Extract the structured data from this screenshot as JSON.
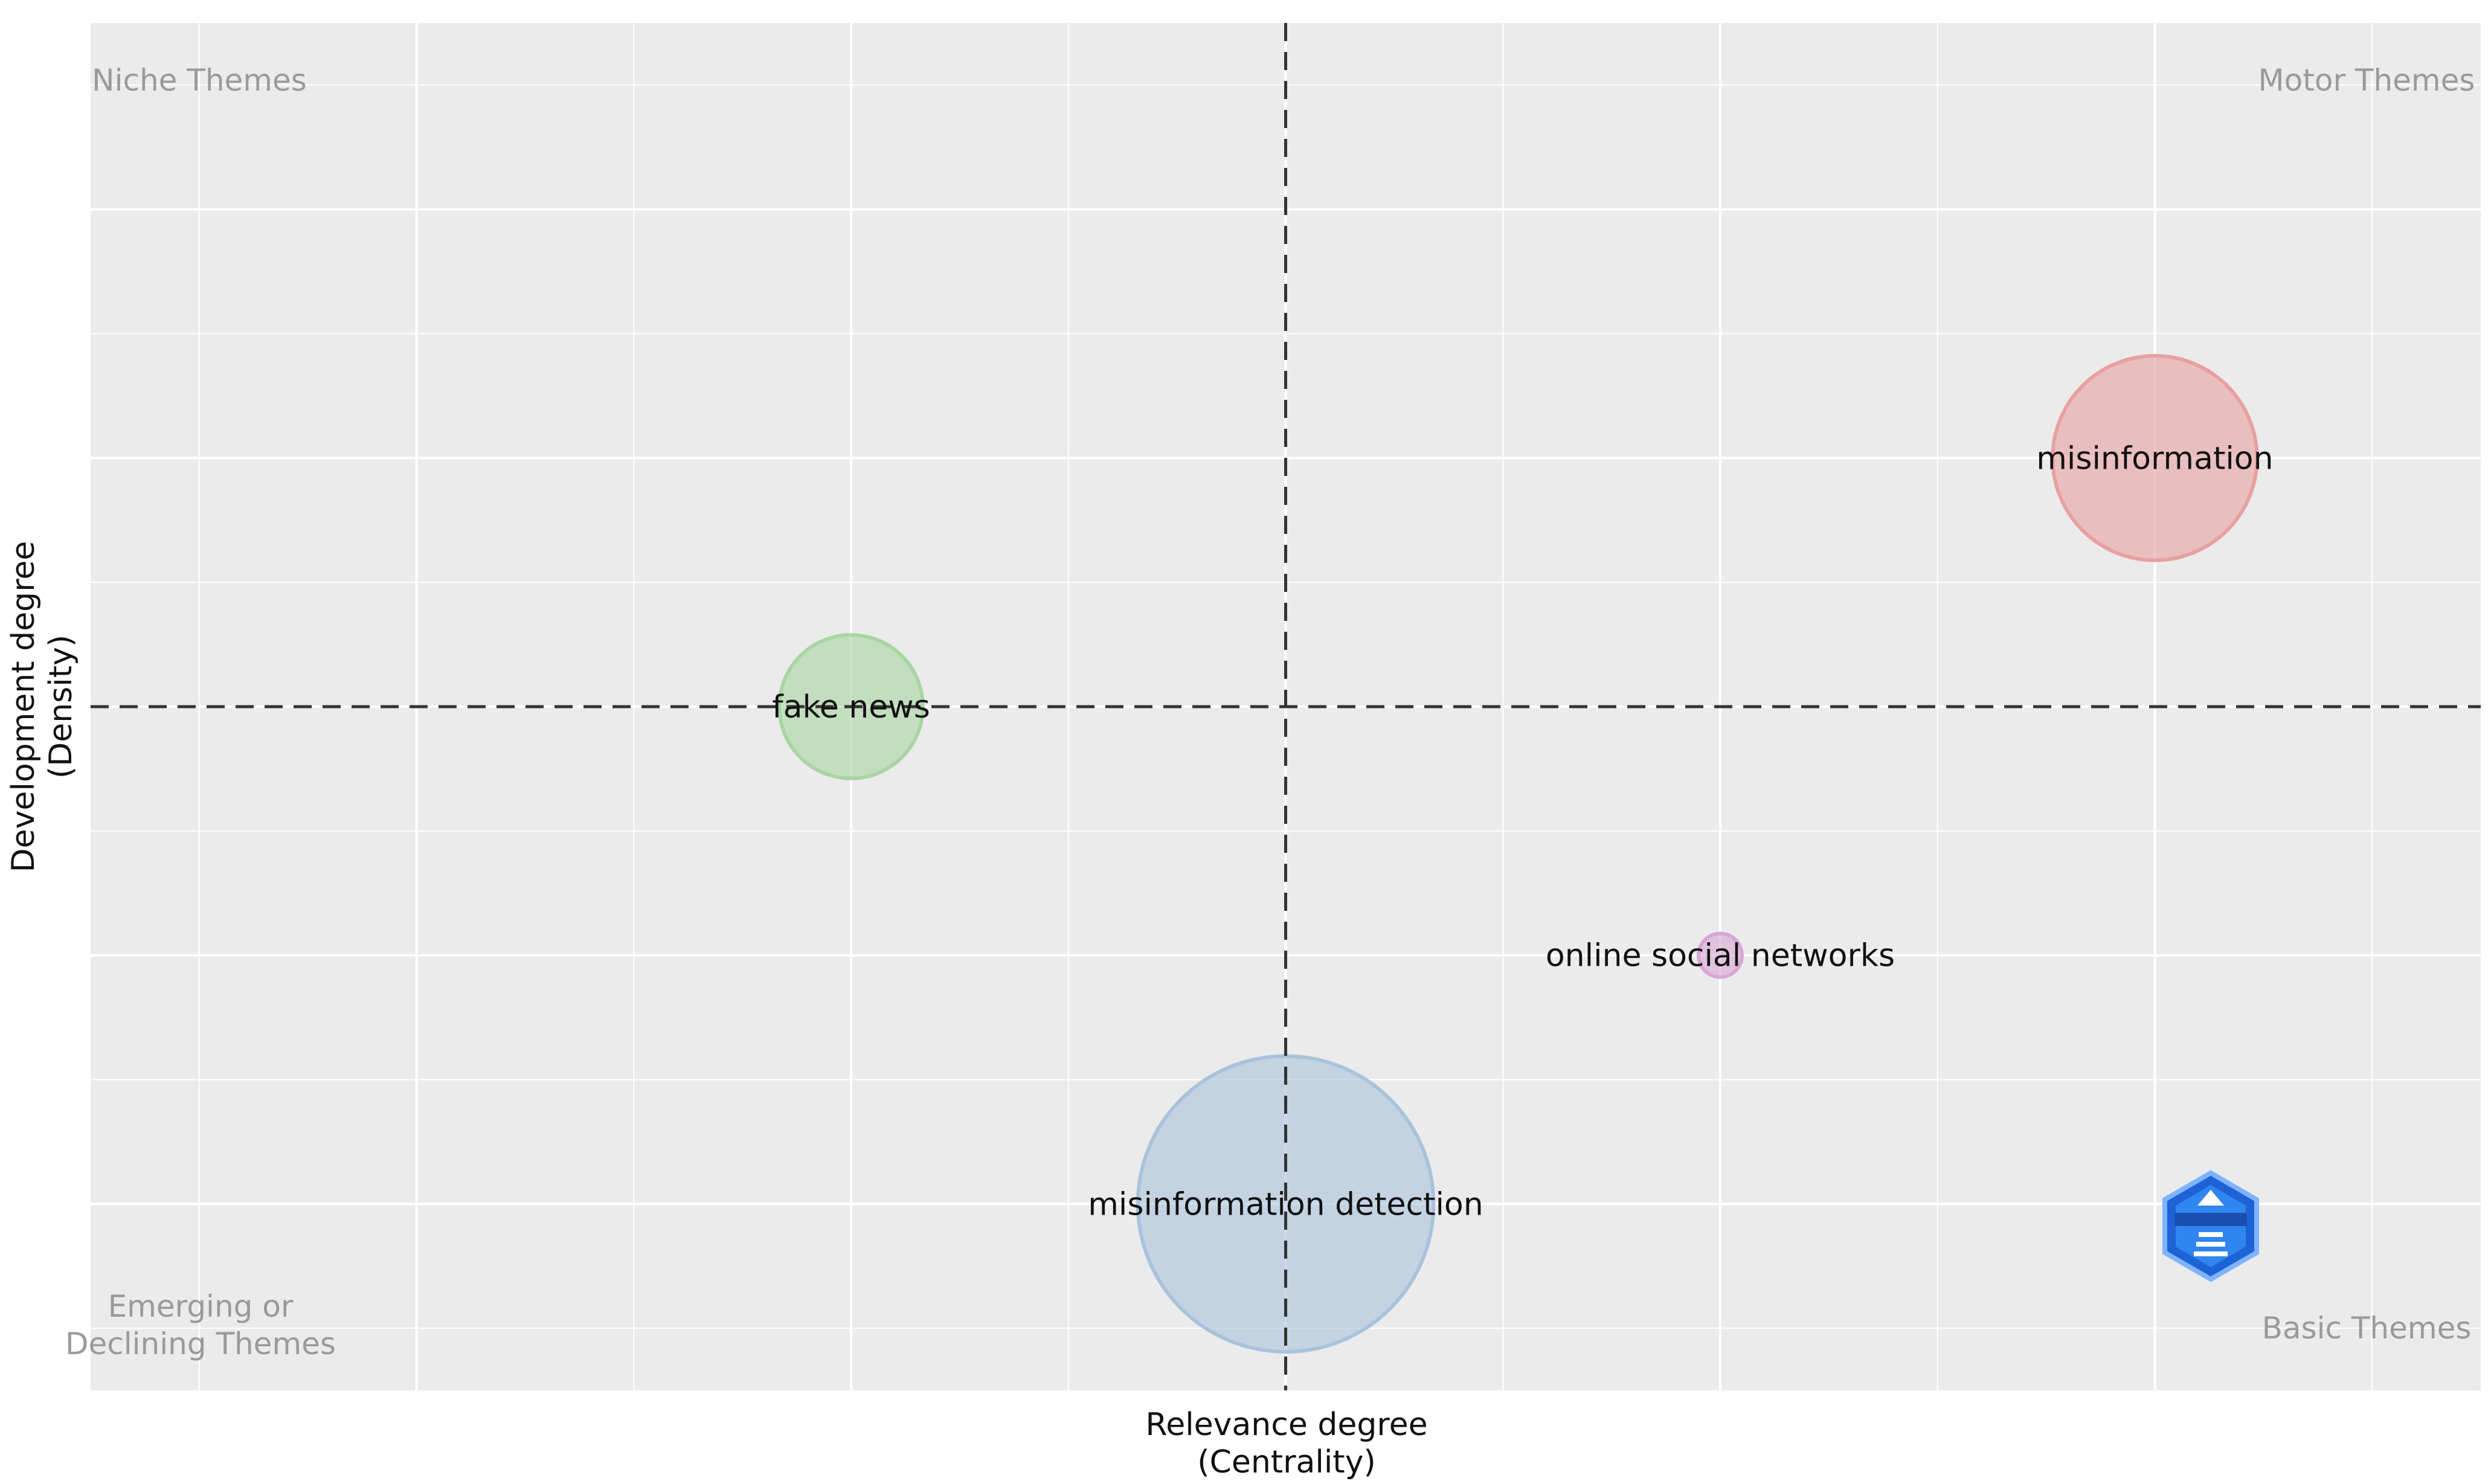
{
  "chart_data": {
    "type": "scatter",
    "title": "",
    "xlabel_line1": "Relevance degree",
    "xlabel_line2": "(Centrality)",
    "ylabel_line1": "Development degree",
    "ylabel_line2": "(Density)",
    "xlim": [
      -0.75,
      4.75
    ],
    "ylim": [
      -1.75,
      3.75
    ],
    "x_center": 2,
    "y_center": 1,
    "grid": true,
    "legend": "none",
    "quadrants": {
      "top_left": "Niche Themes",
      "top_right": "Motor Themes",
      "bottom_left_line1": "Emerging or",
      "bottom_left_line2": "Declining Themes",
      "bottom_right": "Basic Themes"
    },
    "points": [
      {
        "label": "misinformation",
        "x": 4,
        "y": 2,
        "size": 0.47,
        "color": "#E8A0A0"
      },
      {
        "label": "fake news",
        "x": 1,
        "y": 1,
        "size": 0.33,
        "color": "#A8D5A2"
      },
      {
        "label": "online social networks",
        "x": 3,
        "y": 0,
        "size": 0.1,
        "color": "#D9A6D6"
      },
      {
        "label": "misinformation detection",
        "x": 2,
        "y": -1,
        "size": 0.68,
        "color": "#A9C3DC"
      }
    ]
  }
}
